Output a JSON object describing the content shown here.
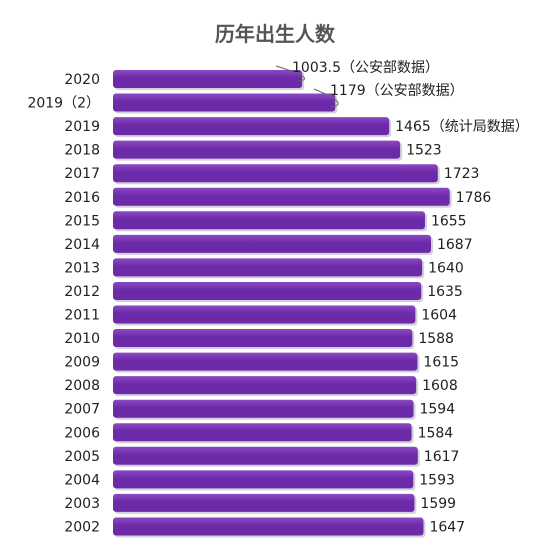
{
  "colors": {
    "bar": "#6d2aa8",
    "bar_highlight": "#8a49c5",
    "text": "#222222",
    "title": "#555555",
    "connector": "#666666"
  },
  "chart_data": {
    "type": "bar",
    "orientation": "horizontal",
    "title": "历年出生人数",
    "xlabel": "",
    "ylabel": "",
    "xlim": [
      0,
      2000
    ],
    "grid": false,
    "categories": [
      "2020",
      "2019（2）",
      "2019",
      "2018",
      "2017",
      "2016",
      "2015",
      "2014",
      "2013",
      "2012",
      "2011",
      "2010",
      "2009",
      "2008",
      "2007",
      "2006",
      "2005",
      "2004",
      "2003",
      "2002"
    ],
    "values": [
      1003.5,
      1179,
      1465,
      1523,
      1723,
      1786,
      1655,
      1687,
      1640,
      1635,
      1604,
      1588,
      1615,
      1608,
      1594,
      1584,
      1617,
      1593,
      1599,
      1647
    ],
    "value_labels": [
      "1003.5（公安部数据）",
      "1179（公安部数据）",
      "1465（统计局数据）",
      "1523",
      "1723",
      "1786",
      "1655",
      "1687",
      "1640",
      "1635",
      "1604",
      "1588",
      "1615",
      "1608",
      "1594",
      "1584",
      "1617",
      "1593",
      "1599",
      "1647"
    ]
  }
}
